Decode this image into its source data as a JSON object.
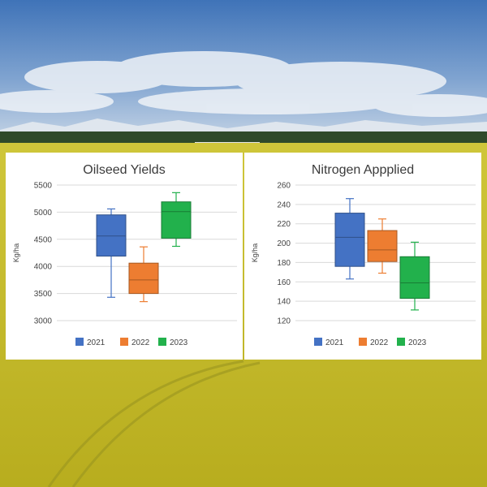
{
  "background": {
    "description_colors": {
      "sky_top": "#4f7fbf",
      "sky_bottom": "#b9cde3",
      "field": "#c9c12a"
    }
  },
  "chart_data": [
    {
      "type": "box",
      "title": "Oilseed Yields",
      "ylabel": "Kg/ha",
      "ylim": [
        3000,
        5500
      ],
      "yticks": [
        3000,
        3500,
        4000,
        4500,
        5000,
        5500
      ],
      "grid": true,
      "legend": "bottom",
      "series": [
        {
          "name": "2021",
          "color": "#4472c4",
          "min": 3430,
          "q1": 4190,
          "median": 4560,
          "q3": 4950,
          "max": 5060
        },
        {
          "name": "2022",
          "color": "#ed7d31",
          "min": 3350,
          "q1": 3500,
          "median": 3750,
          "q3": 4060,
          "max": 4360
        },
        {
          "name": "2023",
          "color": "#22b14c",
          "min": 4370,
          "q1": 4520,
          "median": 5010,
          "q3": 5190,
          "max": 5360
        }
      ]
    },
    {
      "type": "box",
      "title": "Nitrogen Appplied",
      "ylabel": "Kg/ha",
      "ylim": [
        120,
        260
      ],
      "yticks": [
        120,
        140,
        160,
        180,
        200,
        220,
        240,
        260
      ],
      "grid": true,
      "legend": "bottom",
      "series": [
        {
          "name": "2021",
          "color": "#4472c4",
          "min": 163,
          "q1": 176,
          "median": 206,
          "q3": 231,
          "max": 246
        },
        {
          "name": "2022",
          "color": "#ed7d31",
          "min": 169,
          "q1": 181,
          "median": 193,
          "q3": 213,
          "max": 225
        },
        {
          "name": "2023",
          "color": "#22b14c",
          "min": 131,
          "q1": 143,
          "median": 159,
          "q3": 186,
          "max": 201
        }
      ]
    }
  ]
}
